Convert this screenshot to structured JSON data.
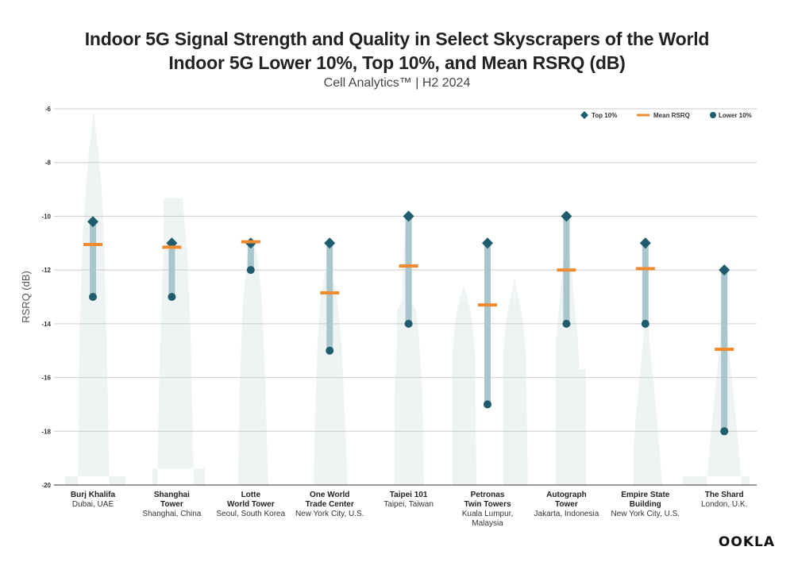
{
  "header": {
    "title_line1": "Indoor 5G Signal Strength and Quality in Select Skyscrapers of the World",
    "title_line2": "Indoor 5G Lower 10%, Top 10%, and Mean RSRQ (dB)",
    "subtitle": "Cell Analytics™ | H2 2024"
  },
  "brand": {
    "logo_text": "OOKLA"
  },
  "colors": {
    "top": "#1f5c6e",
    "lower": "#1f5c6e",
    "mean": "#f08a2e",
    "range_bar": "#a9c6cd",
    "silhouette": "#eef3f3",
    "grid": "#cccccc",
    "axis": "#333333"
  },
  "chart_data": {
    "type": "range-dot",
    "ylabel": "RSRQ (dB)",
    "ylim": [
      -20,
      -6
    ],
    "yticks": [
      -20,
      -18,
      -16,
      -14,
      -12,
      -10,
      -8,
      -6
    ],
    "grid": true,
    "legend_position": "top-right",
    "legend": [
      "Top 10%",
      "Mean RSRQ",
      "Lower 10%"
    ],
    "categories": [
      {
        "name": [
          "Burj Khalifa"
        ],
        "location": [
          "Dubai, UAE"
        ]
      },
      {
        "name": [
          "Shanghai",
          "Tower"
        ],
        "location": [
          "Shanghai, China"
        ]
      },
      {
        "name": [
          "Lotte",
          "World Tower"
        ],
        "location": [
          "Seoul, South Korea"
        ]
      },
      {
        "name": [
          "One World",
          "Trade Center"
        ],
        "location": [
          "New York City, U.S."
        ]
      },
      {
        "name": [
          "Taipei 101"
        ],
        "location": [
          "Taipei, Taiwan"
        ]
      },
      {
        "name": [
          "Petronas",
          "Twin Towers"
        ],
        "location": [
          "Kuala Lumpur,",
          "Malaysia"
        ]
      },
      {
        "name": [
          "Autograph",
          "Tower"
        ],
        "location": [
          "Jakarta, Indonesia"
        ]
      },
      {
        "name": [
          "Empire State",
          "Building"
        ],
        "location": [
          "New York City, U.S."
        ]
      },
      {
        "name": [
          "The Shard"
        ],
        "location": [
          "London, U.K."
        ]
      }
    ],
    "series": [
      {
        "name": "Top 10%",
        "values": [
          -10.2,
          -11,
          -11,
          -11,
          -10,
          -11,
          -10,
          -11,
          -12
        ]
      },
      {
        "name": "Mean RSRQ",
        "values": [
          -11.05,
          -11.15,
          -10.95,
          -12.85,
          -11.85,
          -13.3,
          -12.0,
          -11.95,
          -14.95
        ]
      },
      {
        "name": "Lower 10%",
        "values": [
          -13,
          -13,
          -12,
          -15,
          -14,
          -17,
          -14,
          -14,
          -18
        ]
      }
    ]
  }
}
